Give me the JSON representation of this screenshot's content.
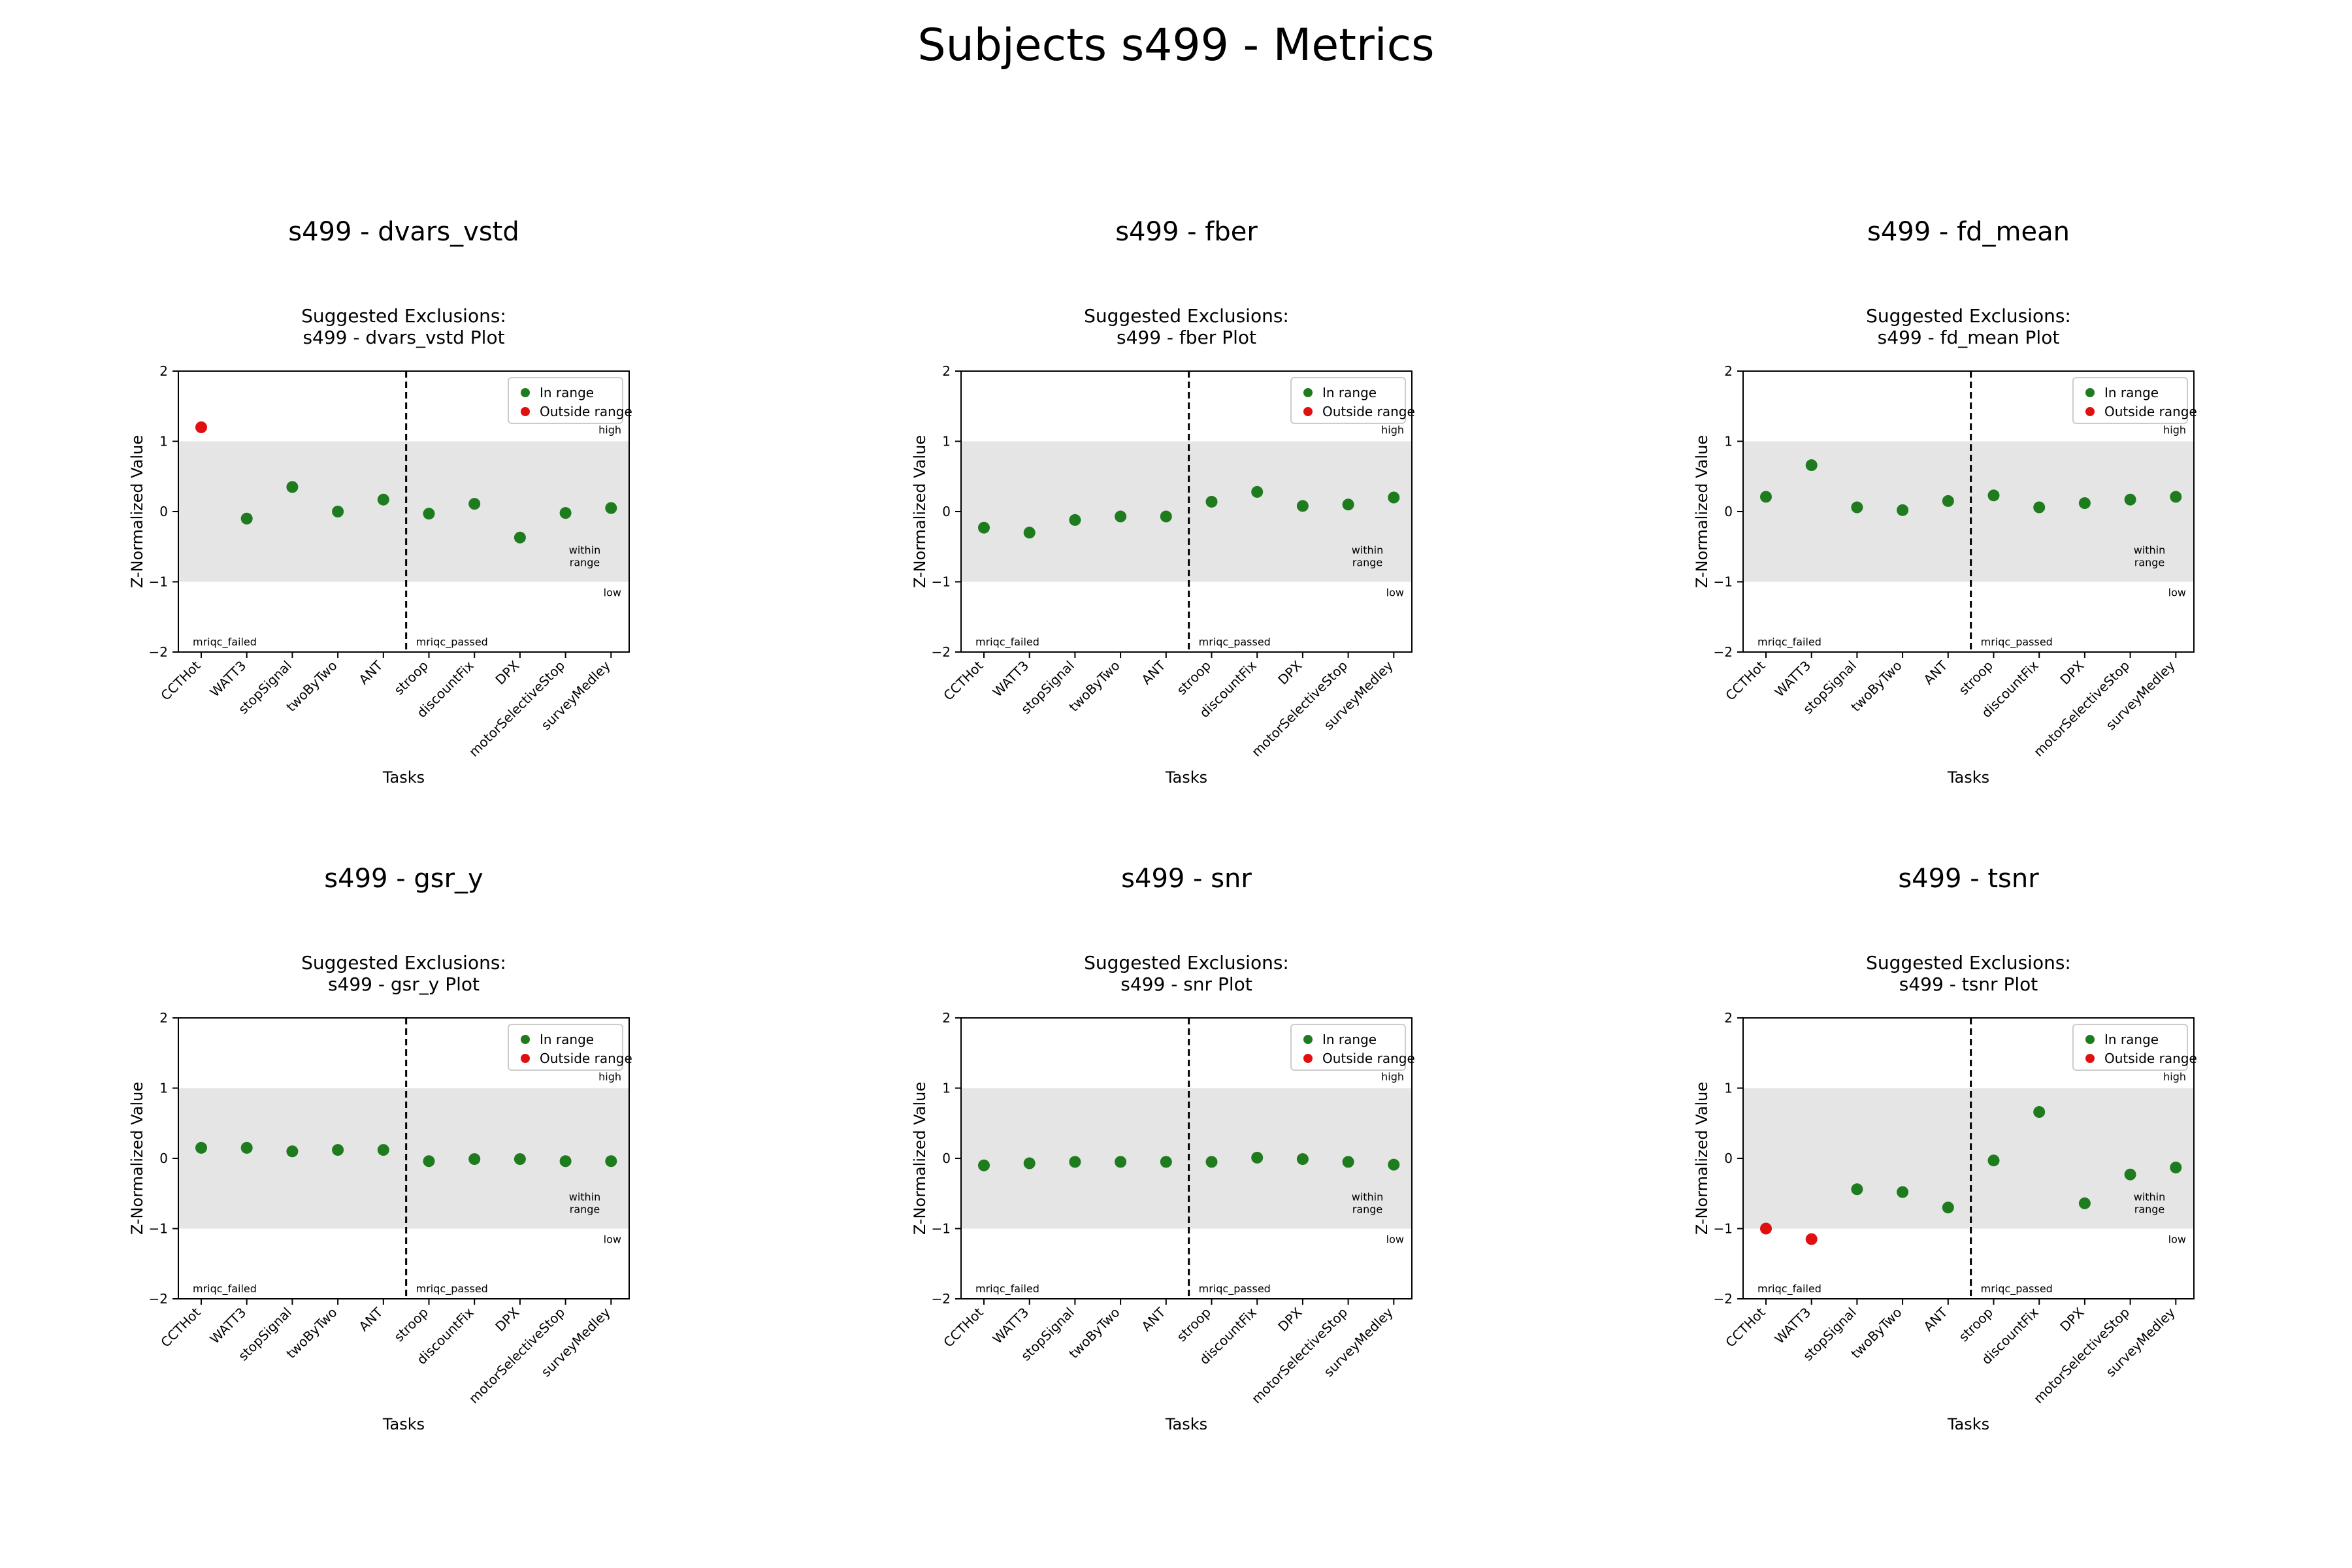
{
  "title": "Subjects s499 - Metrics",
  "colors": {
    "in_range": "#1e7b1e",
    "outside_range": "#e01010",
    "band": "#e5e5e5"
  },
  "chart_data": [
    {
      "type": "scatter",
      "heading": "s499 - dvars_vstd",
      "title": "Suggested Exclusions:\ns499 - dvars_vstd Plot",
      "xlabel": "Tasks",
      "ylabel": "Z-Normalized Value",
      "ylim": [
        -2,
        2
      ],
      "yticks": [
        2,
        1,
        0,
        -1,
        -2
      ],
      "ytick_labels": [
        "2",
        "1",
        "0",
        "−1",
        "−2"
      ],
      "within_range": [
        -1,
        1
      ],
      "categories": [
        "CCTHot",
        "WATT3",
        "stopSignal",
        "twoByTwo",
        "ANT",
        "stroop",
        "discountFix",
        "DPX",
        "motorSelectiveStop",
        "surveyMedley"
      ],
      "values": [
        1.2,
        -0.1,
        0.35,
        0.0,
        0.17,
        -0.03,
        0.11,
        -0.37,
        -0.02,
        0.05
      ],
      "status": [
        "out",
        "in",
        "in",
        "in",
        "in",
        "in",
        "in",
        "in",
        "in",
        "in"
      ],
      "legend": [
        "In range",
        "Outside range"
      ],
      "legend_position": "upper right",
      "annotations": {
        "high": "high",
        "within": "within\nrange",
        "low": "low",
        "left": "mriqc_failed",
        "right": "mriqc_passed"
      }
    },
    {
      "type": "scatter",
      "heading": "s499 - fber",
      "title": "Suggested Exclusions:\ns499 - fber Plot",
      "xlabel": "Tasks",
      "ylabel": "Z-Normalized Value",
      "ylim": [
        -2,
        2
      ],
      "yticks": [
        2,
        1,
        0,
        -1,
        -2
      ],
      "ytick_labels": [
        "2",
        "1",
        "0",
        "−1",
        "−2"
      ],
      "within_range": [
        -1,
        1
      ],
      "categories": [
        "CCTHot",
        "WATT3",
        "stopSignal",
        "twoByTwo",
        "ANT",
        "stroop",
        "discountFix",
        "DPX",
        "motorSelectiveStop",
        "surveyMedley"
      ],
      "values": [
        -0.23,
        -0.3,
        -0.12,
        -0.07,
        -0.07,
        0.14,
        0.28,
        0.08,
        0.1,
        0.2
      ],
      "status": [
        "in",
        "in",
        "in",
        "in",
        "in",
        "in",
        "in",
        "in",
        "in",
        "in"
      ],
      "legend": [
        "In range",
        "Outside range"
      ],
      "legend_position": "upper right",
      "annotations": {
        "high": "high",
        "within": "within\nrange",
        "low": "low",
        "left": "mriqc_failed",
        "right": "mriqc_passed"
      }
    },
    {
      "type": "scatter",
      "heading": "s499 - fd_mean",
      "title": "Suggested Exclusions:\ns499 - fd_mean Plot",
      "xlabel": "Tasks",
      "ylabel": "Z-Normalized Value",
      "ylim": [
        -2,
        2
      ],
      "yticks": [
        2,
        1,
        0,
        -1,
        -2
      ],
      "ytick_labels": [
        "2",
        "1",
        "0",
        "−1",
        "−2"
      ],
      "within_range": [
        -1,
        1
      ],
      "categories": [
        "CCTHot",
        "WATT3",
        "stopSignal",
        "twoByTwo",
        "ANT",
        "stroop",
        "discountFix",
        "DPX",
        "motorSelectiveStop",
        "surveyMedley"
      ],
      "values": [
        0.21,
        0.66,
        0.06,
        0.02,
        0.15,
        0.23,
        0.06,
        0.12,
        0.17,
        0.21
      ],
      "status": [
        "in",
        "in",
        "in",
        "in",
        "in",
        "in",
        "in",
        "in",
        "in",
        "in"
      ],
      "legend": [
        "In range",
        "Outside range"
      ],
      "legend_position": "upper right",
      "annotations": {
        "high": "high",
        "within": "within\nrange",
        "low": "low",
        "left": "mriqc_failed",
        "right": "mriqc_passed"
      }
    },
    {
      "type": "scatter",
      "heading": "s499 - gsr_y",
      "title": "Suggested Exclusions:\ns499 - gsr_y Plot",
      "xlabel": "Tasks",
      "ylabel": "Z-Normalized Value",
      "ylim": [
        -2,
        2
      ],
      "yticks": [
        2,
        1,
        0,
        -1,
        -2
      ],
      "ytick_labels": [
        "2",
        "1",
        "0",
        "−1",
        "−2"
      ],
      "within_range": [
        -1,
        1
      ],
      "categories": [
        "CCTHot",
        "WATT3",
        "stopSignal",
        "twoByTwo",
        "ANT",
        "stroop",
        "discountFix",
        "DPX",
        "motorSelectiveStop",
        "surveyMedley"
      ],
      "values": [
        0.15,
        0.15,
        0.1,
        0.12,
        0.12,
        -0.04,
        -0.01,
        -0.01,
        -0.04,
        -0.04
      ],
      "status": [
        "in",
        "in",
        "in",
        "in",
        "in",
        "in",
        "in",
        "in",
        "in",
        "in"
      ],
      "legend": [
        "In range",
        "Outside range"
      ],
      "legend_position": "upper right",
      "annotations": {
        "high": "high",
        "within": "within\nrange",
        "low": "low",
        "left": "mriqc_failed",
        "right": "mriqc_passed"
      }
    },
    {
      "type": "scatter",
      "heading": "s499 - snr",
      "title": "Suggested Exclusions:\ns499 - snr Plot",
      "xlabel": "Tasks",
      "ylabel": "Z-Normalized Value",
      "ylim": [
        -2,
        2
      ],
      "yticks": [
        2,
        1,
        0,
        -1,
        -2
      ],
      "ytick_labels": [
        "2",
        "1",
        "0",
        "−1",
        "−2"
      ],
      "within_range": [
        -1,
        1
      ],
      "categories": [
        "CCTHot",
        "WATT3",
        "stopSignal",
        "twoByTwo",
        "ANT",
        "stroop",
        "discountFix",
        "DPX",
        "motorSelectiveStop",
        "surveyMedley"
      ],
      "values": [
        -0.1,
        -0.07,
        -0.05,
        -0.05,
        -0.05,
        -0.05,
        0.01,
        -0.01,
        -0.05,
        -0.09
      ],
      "status": [
        "in",
        "in",
        "in",
        "in",
        "in",
        "in",
        "in",
        "in",
        "in",
        "in"
      ],
      "legend": [
        "In range",
        "Outside range"
      ],
      "legend_position": "upper right",
      "annotations": {
        "high": "high",
        "within": "within\nrange",
        "low": "low",
        "left": "mriqc_failed",
        "right": "mriqc_passed"
      }
    },
    {
      "type": "scatter",
      "heading": "s499 - tsnr",
      "title": "Suggested Exclusions:\ns499 - tsnr Plot",
      "xlabel": "Tasks",
      "ylabel": "Z-Normalized Value",
      "ylim": [
        -2,
        2
      ],
      "yticks": [
        2,
        1,
        0,
        -1,
        -2
      ],
      "ytick_labels": [
        "2",
        "1",
        "0",
        "−1",
        "−2"
      ],
      "within_range": [
        -1,
        1
      ],
      "categories": [
        "CCTHot",
        "WATT3",
        "stopSignal",
        "twoByTwo",
        "ANT",
        "stroop",
        "discountFix",
        "DPX",
        "motorSelectiveStop",
        "surveyMedley"
      ],
      "values": [
        -1.0,
        -1.15,
        -0.44,
        -0.48,
        -0.7,
        -0.03,
        0.66,
        -0.64,
        -0.23,
        -0.13
      ],
      "status": [
        "out",
        "out",
        "in",
        "in",
        "in",
        "in",
        "in",
        "in",
        "in",
        "in"
      ],
      "legend": [
        "In range",
        "Outside range"
      ],
      "legend_position": "upper right",
      "annotations": {
        "high": "high",
        "within": "within\nrange",
        "low": "low",
        "left": "mriqc_failed",
        "right": "mriqc_passed"
      }
    }
  ]
}
